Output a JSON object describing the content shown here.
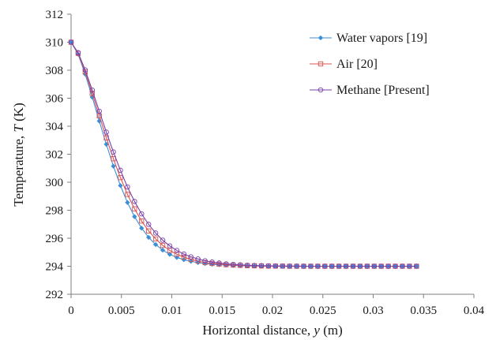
{
  "chart_data": {
    "type": "line",
    "xlabel_prefix": "Horizontal distance, ",
    "xlabel_var": "y",
    "xlabel_suffix": " (m)",
    "ylabel_prefix": "Temperature, ",
    "ylabel_var": "T",
    "ylabel_suffix": " (K)",
    "xlim": [
      0,
      0.04
    ],
    "ylim": [
      292,
      312
    ],
    "xticks": [
      "0",
      "0.005",
      "0.01",
      "0.015",
      "0.02",
      "0.025",
      "0.03",
      "0.035",
      "0.04"
    ],
    "yticks": [
      "292",
      "294",
      "296",
      "298",
      "300",
      "302",
      "304",
      "306",
      "308",
      "310",
      "312"
    ],
    "grid": false,
    "legend_position": "top-right",
    "series": [
      {
        "name": "Water vapors [19]",
        "color": "#3c8fd6",
        "marker": "diamond",
        "x": [
          0,
          0.0007,
          0.0014,
          0.0021,
          0.0028,
          0.0035,
          0.0042,
          0.0049,
          0.0056,
          0.0063,
          0.007,
          0.0077,
          0.0084,
          0.0091,
          0.0098,
          0.0105,
          0.0112,
          0.0119,
          0.0126,
          0.0133,
          0.014,
          0.0147,
          0.0154,
          0.0161,
          0.0168,
          0.0175,
          0.0182,
          0.0189,
          0.0196,
          0.0203,
          0.021,
          0.0217,
          0.0224,
          0.0231,
          0.0238,
          0.0245,
          0.0252,
          0.0259,
          0.0266,
          0.0273,
          0.028,
          0.0287,
          0.0294,
          0.0301,
          0.0308,
          0.0315,
          0.0322,
          0.0329,
          0.0336,
          0.0343
        ],
        "y": [
          310.0,
          309.14,
          307.72,
          306.08,
          304.37,
          302.71,
          301.15,
          299.76,
          298.55,
          297.54,
          296.72,
          296.06,
          295.55,
          295.15,
          294.85,
          294.63,
          294.47,
          294.35,
          294.26,
          294.19,
          294.14,
          294.11,
          294.08,
          294.06,
          294.04,
          294.03,
          294.02,
          294.01,
          294.01,
          294.01,
          294.0,
          294.0,
          294.0,
          294.0,
          294.0,
          294.0,
          294.0,
          294.0,
          294.0,
          294.0,
          294.0,
          294.0,
          294.0,
          294.0,
          294.0,
          294.0,
          294.0,
          294.0,
          294.0,
          294.0
        ]
      },
      {
        "name": "Air [20]",
        "color": "#d9534f",
        "marker": "square",
        "x": [
          0,
          0.0007,
          0.0014,
          0.0021,
          0.0028,
          0.0035,
          0.0042,
          0.0049,
          0.0056,
          0.0063,
          0.007,
          0.0077,
          0.0084,
          0.0091,
          0.0098,
          0.0105,
          0.0112,
          0.0119,
          0.0126,
          0.0133,
          0.014,
          0.0147,
          0.0154,
          0.0161,
          0.0168,
          0.0175,
          0.0182,
          0.0189,
          0.0196,
          0.0203,
          0.021,
          0.0217,
          0.0224,
          0.0231,
          0.0238,
          0.0245,
          0.0252,
          0.0259,
          0.0266,
          0.0273,
          0.028,
          0.0287,
          0.0294,
          0.0301,
          0.0308,
          0.0315,
          0.0322,
          0.0329,
          0.0336,
          0.0343
        ],
        "y": [
          310.0,
          309.2,
          307.88,
          306.34,
          304.74,
          303.17,
          301.68,
          300.33,
          299.13,
          298.1,
          297.23,
          296.52,
          295.95,
          295.49,
          295.13,
          294.86,
          294.65,
          294.49,
          294.37,
          294.27,
          294.2,
          294.15,
          294.11,
          294.08,
          294.06,
          294.04,
          294.03,
          294.02,
          294.01,
          294.01,
          294.01,
          294.0,
          294.0,
          294.0,
          294.0,
          294.0,
          294.0,
          294.0,
          294.0,
          294.0,
          294.0,
          294.0,
          294.0,
          294.0,
          294.0,
          294.0,
          294.0,
          294.0,
          294.0,
          294.0
        ]
      },
      {
        "name": "Methane [Present]",
        "color": "#7a3fa8",
        "marker": "circle",
        "x": [
          0,
          0.0007,
          0.0014,
          0.0021,
          0.0028,
          0.0035,
          0.0042,
          0.0049,
          0.0056,
          0.0063,
          0.007,
          0.0077,
          0.0084,
          0.0091,
          0.0098,
          0.0105,
          0.0112,
          0.0119,
          0.0126,
          0.0133,
          0.014,
          0.0147,
          0.0154,
          0.0161,
          0.0168,
          0.0175,
          0.0182,
          0.0189,
          0.0196,
          0.0203,
          0.021,
          0.0217,
          0.0224,
          0.0231,
          0.0238,
          0.0245,
          0.0252,
          0.0259,
          0.0266,
          0.0273,
          0.028,
          0.0287,
          0.0294,
          0.0301,
          0.0308,
          0.0315,
          0.0322,
          0.0329,
          0.0336,
          0.0343
        ],
        "y": [
          310.0,
          309.25,
          308.02,
          306.58,
          305.07,
          303.58,
          302.16,
          300.85,
          299.66,
          298.63,
          297.74,
          296.99,
          296.37,
          295.86,
          295.45,
          295.13,
          294.87,
          294.67,
          294.52,
          294.39,
          294.3,
          294.23,
          294.17,
          294.13,
          294.1,
          294.07,
          294.05,
          294.04,
          294.03,
          294.02,
          294.01,
          294.01,
          294.01,
          294.0,
          294.0,
          294.0,
          294.0,
          294.0,
          294.0,
          294.0,
          294.0,
          294.0,
          294.0,
          294.0,
          294.0,
          294.0,
          294.0,
          294.0,
          294.0,
          294.0
        ]
      }
    ]
  }
}
